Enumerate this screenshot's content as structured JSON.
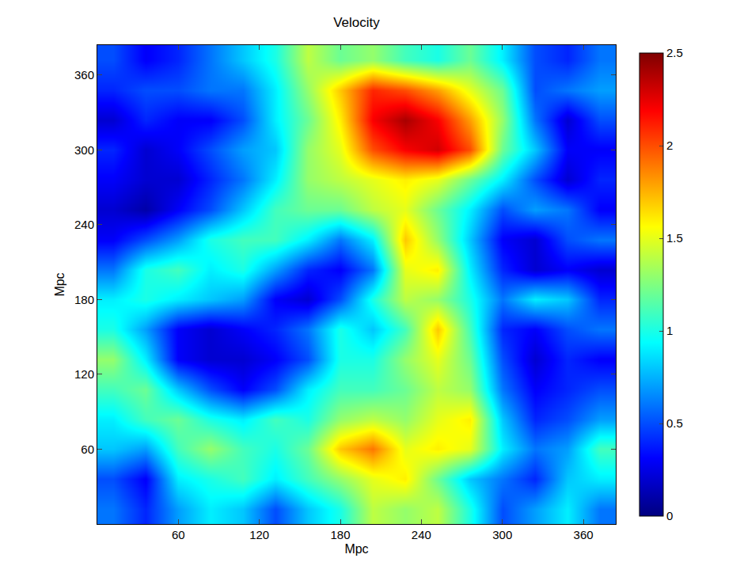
{
  "chart_data": {
    "type": "heatmap",
    "title": "Velocity",
    "x_label": "Mpc",
    "y_label": "Mpc",
    "x": [
      12,
      36,
      60,
      84,
      108,
      132,
      156,
      180,
      204,
      228,
      252,
      276,
      300,
      324,
      348,
      372
    ],
    "y": [
      12,
      36,
      60,
      84,
      108,
      132,
      156,
      180,
      204,
      228,
      252,
      276,
      300,
      324,
      348,
      372
    ],
    "z": [
      [
        0.6,
        0.4,
        0.7,
        0.9,
        0.8,
        0.5,
        0.8,
        1.0,
        1.4,
        1.3,
        1.4,
        1.0,
        0.5,
        0.7,
        0.9,
        0.6
      ],
      [
        0.5,
        0.3,
        0.9,
        1.0,
        1.1,
        0.9,
        1.1,
        1.3,
        1.5,
        1.6,
        1.2,
        0.8,
        0.6,
        0.4,
        0.8,
        0.9
      ],
      [
        0.8,
        0.7,
        1.1,
        1.3,
        1.1,
        1.0,
        1.2,
        1.7,
        1.9,
        1.5,
        1.6,
        1.5,
        0.9,
        0.6,
        0.7,
        1.1
      ],
      [
        0.9,
        1.1,
        1.2,
        1.0,
        0.9,
        1.1,
        1.0,
        1.3,
        1.4,
        1.3,
        1.5,
        1.6,
        0.8,
        0.4,
        0.5,
        0.7
      ],
      [
        1.1,
        1.2,
        0.8,
        0.5,
        0.3,
        0.5,
        0.9,
        1.1,
        1.1,
        1.2,
        1.4,
        1.3,
        0.6,
        0.3,
        0.4,
        0.5
      ],
      [
        1.3,
        0.9,
        0.3,
        0.2,
        0.2,
        0.3,
        0.5,
        1.0,
        1.0,
        1.3,
        1.5,
        1.2,
        0.5,
        0.2,
        0.4,
        0.3
      ],
      [
        1.0,
        0.7,
        0.3,
        0.2,
        0.3,
        0.4,
        0.6,
        1.0,
        0.8,
        1.1,
        1.7,
        1.1,
        0.4,
        0.3,
        0.5,
        0.6
      ],
      [
        0.9,
        1.0,
        0.9,
        0.8,
        0.7,
        0.3,
        0.2,
        0.5,
        1.0,
        1.4,
        1.3,
        1.0,
        0.6,
        0.9,
        0.8,
        0.4
      ],
      [
        0.6,
        1.0,
        1.1,
        0.9,
        1.0,
        0.7,
        0.4,
        0.3,
        0.6,
        1.5,
        1.6,
        0.9,
        0.4,
        0.2,
        0.3,
        0.2
      ],
      [
        0.3,
        0.5,
        0.7,
        1.0,
        1.1,
        1.1,
        0.9,
        0.6,
        0.9,
        1.7,
        1.3,
        0.8,
        0.3,
        0.2,
        0.5,
        0.6
      ],
      [
        0.2,
        0.1,
        0.3,
        0.5,
        0.8,
        1.1,
        1.2,
        1.2,
        1.4,
        1.5,
        1.2,
        0.9,
        0.5,
        0.7,
        0.6,
        0.3
      ],
      [
        0.3,
        0.2,
        0.2,
        0.4,
        0.6,
        0.9,
        1.3,
        1.4,
        1.5,
        1.6,
        1.5,
        1.2,
        0.9,
        0.5,
        0.2,
        0.4
      ],
      [
        0.4,
        0.2,
        0.3,
        0.5,
        0.7,
        0.8,
        1.3,
        1.5,
        2.0,
        2.2,
        2.3,
        2.0,
        1.2,
        0.8,
        0.3,
        0.3
      ],
      [
        0.2,
        0.4,
        0.3,
        0.3,
        0.5,
        0.9,
        1.2,
        1.6,
        2.2,
        2.4,
        2.2,
        1.8,
        1.3,
        0.6,
        0.2,
        0.5
      ],
      [
        0.4,
        0.5,
        0.5,
        0.6,
        0.6,
        0.9,
        1.3,
        1.7,
        2.1,
        2.0,
        1.8,
        1.5,
        1.2,
        0.5,
        0.6,
        0.7
      ],
      [
        0.5,
        0.3,
        0.4,
        0.6,
        0.8,
        1.0,
        1.4,
        1.2,
        1.3,
        1.1,
        1.0,
        1.2,
        0.9,
        0.5,
        0.4,
        0.6
      ]
    ],
    "xlim": [
      0,
      384
    ],
    "ylim": [
      0,
      384
    ],
    "xticks": [
      60,
      120,
      180,
      240,
      300,
      360
    ],
    "yticks": [
      60,
      120,
      180,
      240,
      300,
      360
    ],
    "colorbar": {
      "range": [
        0,
        2.5
      ],
      "ticks": [
        0,
        0.5,
        1,
        1.5,
        2,
        2.5
      ]
    }
  }
}
